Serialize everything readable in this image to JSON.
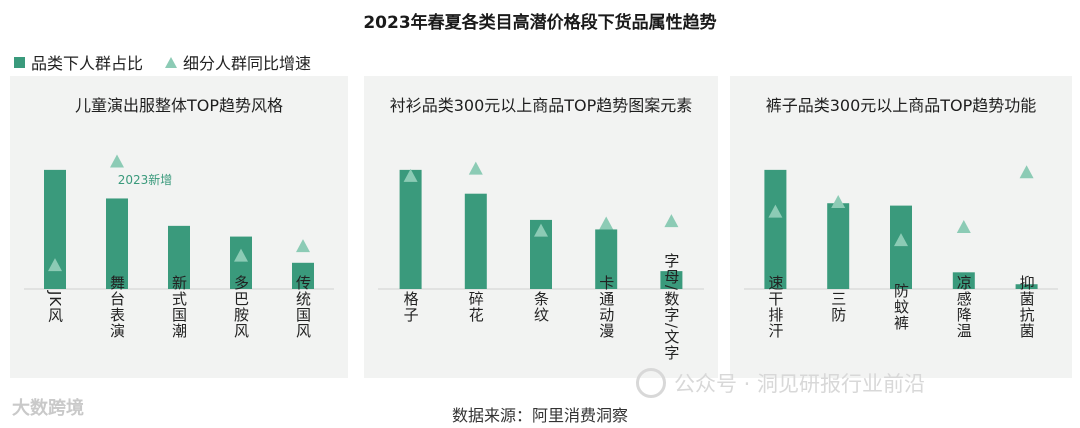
{
  "title": "2023年春夏各类目高潜价格段下货品属性趋势",
  "legend": {
    "bar_label": "品类下人群占比",
    "marker_label": "细分人群同比增速"
  },
  "colors": {
    "bar": "#3a9a7c",
    "marker": "#8ccbb5",
    "annotation": "#3a9a7c"
  },
  "source": "数据来源：阿里消费洞察",
  "watermarks": {
    "left": "大数跨境",
    "right": "公众号 · 洞见研报行业前沿"
  },
  "chart_data": [
    {
      "type": "bar",
      "title": "儿童演出服整体TOP趋势风格",
      "categories": [
        "JK风",
        "舞台表演",
        "新式国潮",
        "多巴胺风",
        "传统国风"
      ],
      "series": [
        {
          "name": "品类下人群占比",
          "kind": "bar",
          "values": [
            100,
            76,
            53,
            44,
            22
          ]
        },
        {
          "name": "细分人群同比增速",
          "kind": "marker",
          "values": [
            20,
            107,
            null,
            28,
            36
          ]
        }
      ],
      "annotations": [
        {
          "text": "2023新增",
          "category": "舞台表演"
        }
      ],
      "ylim": [
        0,
        115
      ]
    },
    {
      "type": "bar",
      "title": "衬衫品类300元以上商品TOP趋势图案元素",
      "categories": [
        "格子",
        "碎花",
        "条纹",
        "卡通动漫",
        "字母/数字/文字"
      ],
      "series": [
        {
          "name": "品类下人群占比",
          "kind": "bar",
          "values": [
            100,
            80,
            58,
            50,
            15
          ]
        },
        {
          "name": "细分人群同比增速",
          "kind": "marker",
          "values": [
            95,
            101,
            49,
            55,
            57
          ]
        }
      ],
      "ylim": [
        0,
        115
      ]
    },
    {
      "type": "bar",
      "title": "裤子品类300元以上商品TOP趋势功能",
      "categories": [
        "速干排汗",
        "三防",
        "防蚊裤",
        "凉感降温",
        "抑菌抗菌"
      ],
      "series": [
        {
          "name": "品类下人群占比",
          "kind": "bar",
          "values": [
            100,
            72,
            70,
            14,
            4
          ]
        },
        {
          "name": "细分人群同比增速",
          "kind": "marker",
          "values": [
            65,
            73,
            41,
            52,
            98
          ]
        }
      ],
      "ylim": [
        0,
        115
      ]
    }
  ]
}
